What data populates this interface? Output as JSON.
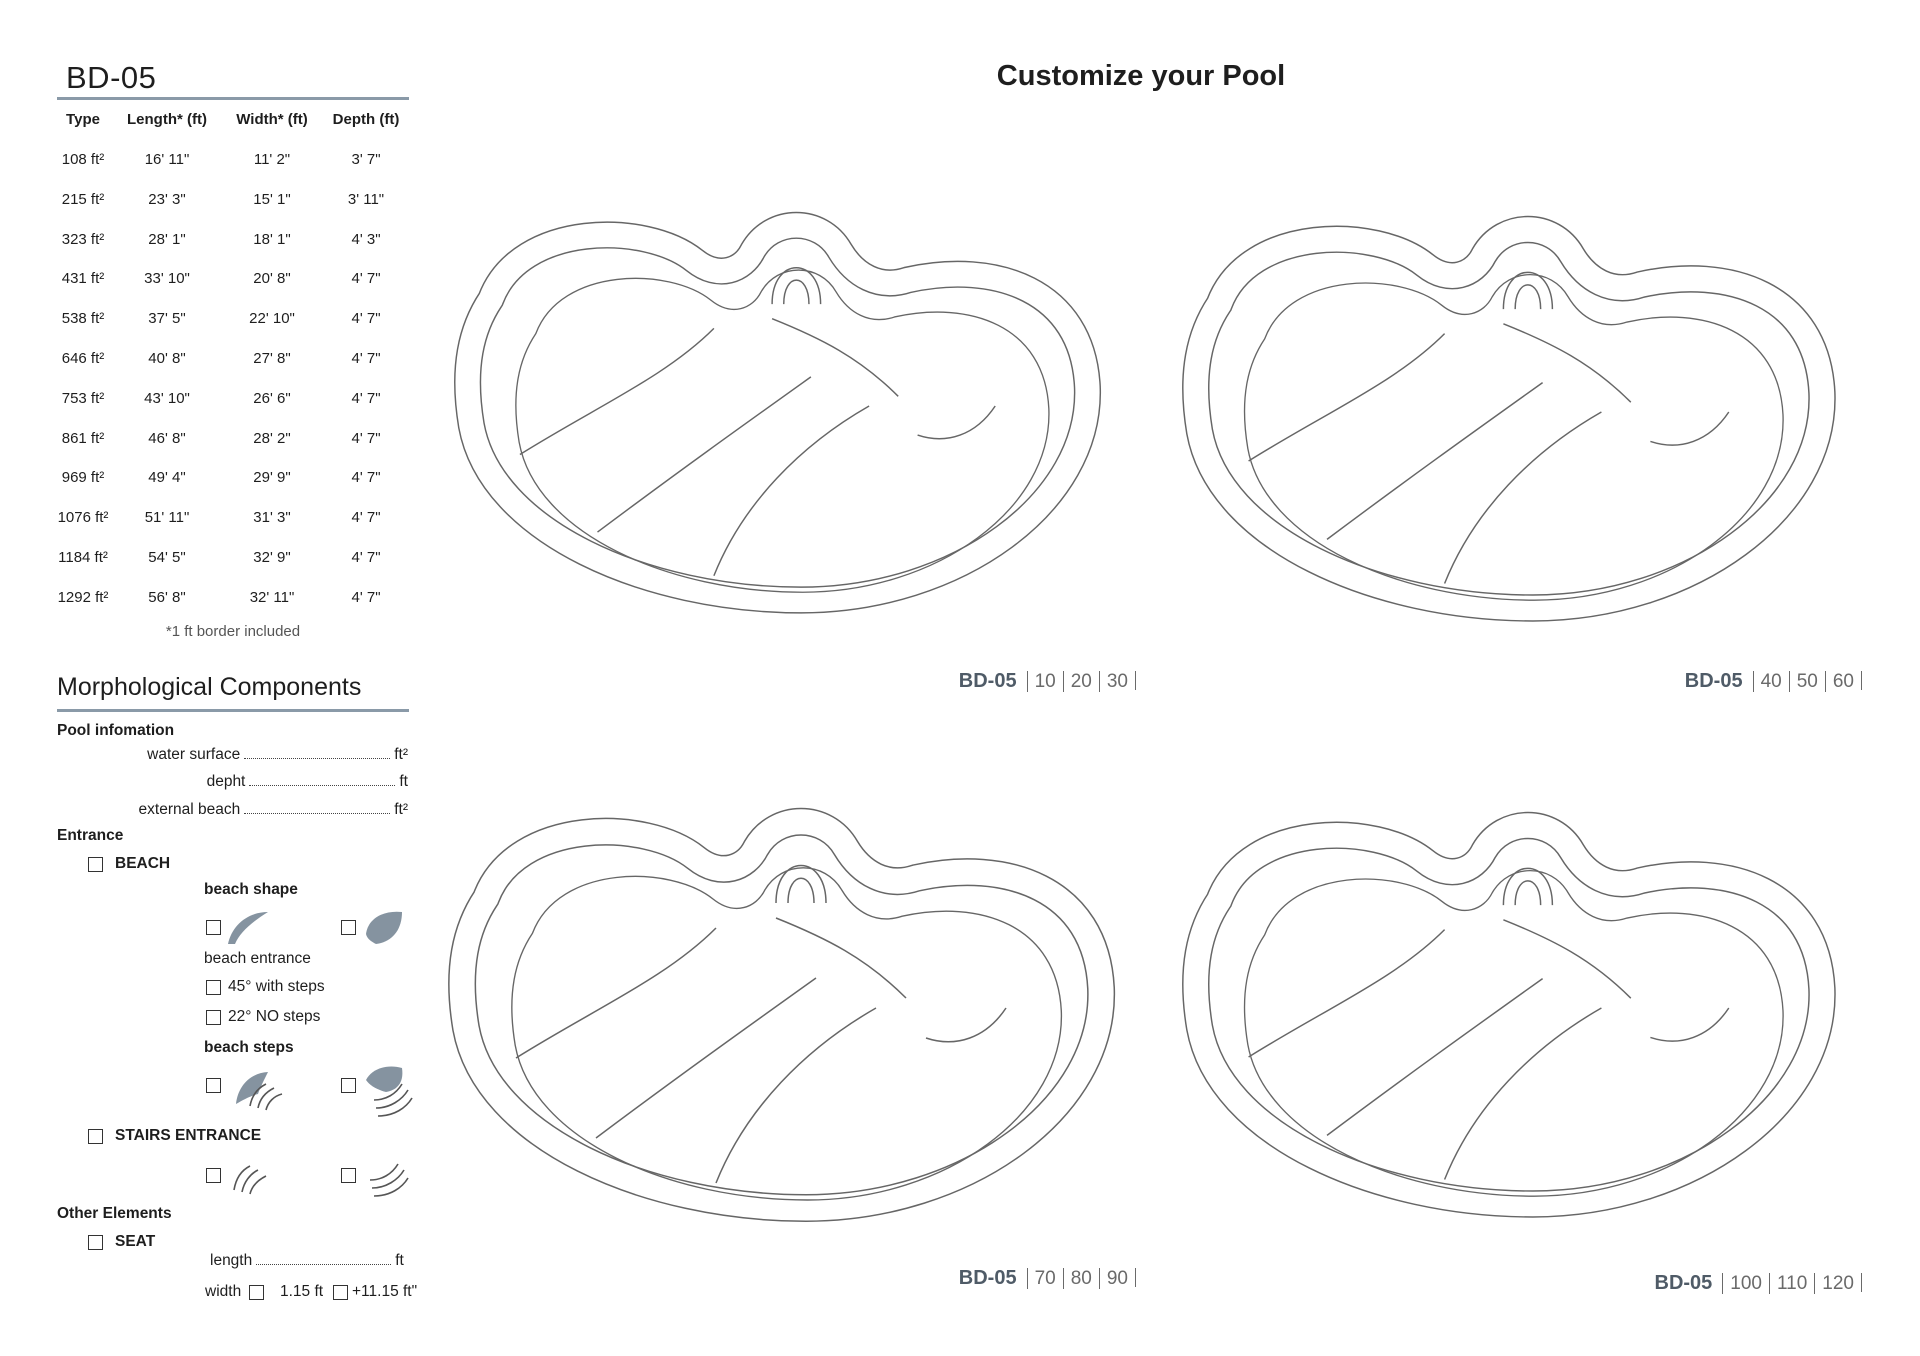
{
  "header": {
    "title": "BD-05",
    "page_title": "Customize your Pool"
  },
  "table": {
    "columns": [
      "Type",
      "Length* (ft)",
      "Width* (ft)",
      "Depth (ft)"
    ],
    "rows": [
      [
        "108 ft²",
        "16' 11\"",
        "11' 2\"",
        "3' 7\""
      ],
      [
        "215 ft²",
        "23' 3\"",
        "15' 1\"",
        "3' 11\""
      ],
      [
        "323 ft²",
        "28' 1\"",
        "18' 1\"",
        "4' 3\""
      ],
      [
        "431 ft²",
        "33' 10\"",
        "20' 8\"",
        "4' 7\""
      ],
      [
        "538 ft²",
        "37' 5\"",
        "22' 10\"",
        "4' 7\""
      ],
      [
        "646 ft²",
        "40' 8\"",
        "27' 8\"",
        "4' 7\""
      ],
      [
        "753 ft²",
        "43' 10\"",
        "26' 6\"",
        "4' 7\""
      ],
      [
        "861 ft²",
        "46' 8\"",
        "28' 2\"",
        "4' 7\""
      ],
      [
        "969 ft²",
        "49' 4\"",
        "29' 9\"",
        "4' 7\""
      ],
      [
        "1076 ft²",
        "51' 11\"",
        "31' 3\"",
        "4' 7\""
      ],
      [
        "1184 ft²",
        "54' 5\"",
        "32' 9\"",
        "4' 7\""
      ],
      [
        "1292 ft²",
        "56' 8\"",
        "32' 11\"",
        "4' 7\""
      ]
    ],
    "footnote": "*1 ft border included"
  },
  "components": {
    "title": "Morphological Components",
    "pool_information": {
      "label": "Pool infomation",
      "fields": [
        {
          "label": "water surface",
          "unit": "ft²"
        },
        {
          "label": "depht",
          "unit": "ft"
        },
        {
          "label": "external beach",
          "unit": "ft²"
        }
      ]
    },
    "entrance": {
      "label": "Entrance",
      "beach": {
        "label": "BEACH",
        "shape_label": "beach shape",
        "entrance_label": "beach entrance",
        "entrance_options": [
          "45° with steps",
          "22° NO steps"
        ],
        "steps_label": "beach steps"
      },
      "stairs": {
        "label": "STAIRS ENTRANCE"
      }
    },
    "other": {
      "label": "Other Elements",
      "seat": {
        "label": "SEAT",
        "length_label": "length",
        "length_unit": "ft",
        "width_label": "width",
        "width_options": [
          "1.15 ft",
          "+11.15 ft\""
        ]
      }
    }
  },
  "pools": [
    {
      "model": "BD-05",
      "sizes": [
        "10",
        "20",
        "30"
      ]
    },
    {
      "model": "BD-05",
      "sizes": [
        "40",
        "50",
        "60"
      ]
    },
    {
      "model": "BD-05",
      "sizes": [
        "70",
        "80",
        "90"
      ]
    },
    {
      "model": "BD-05",
      "sizes": [
        "100",
        "110",
        "120"
      ]
    }
  ]
}
